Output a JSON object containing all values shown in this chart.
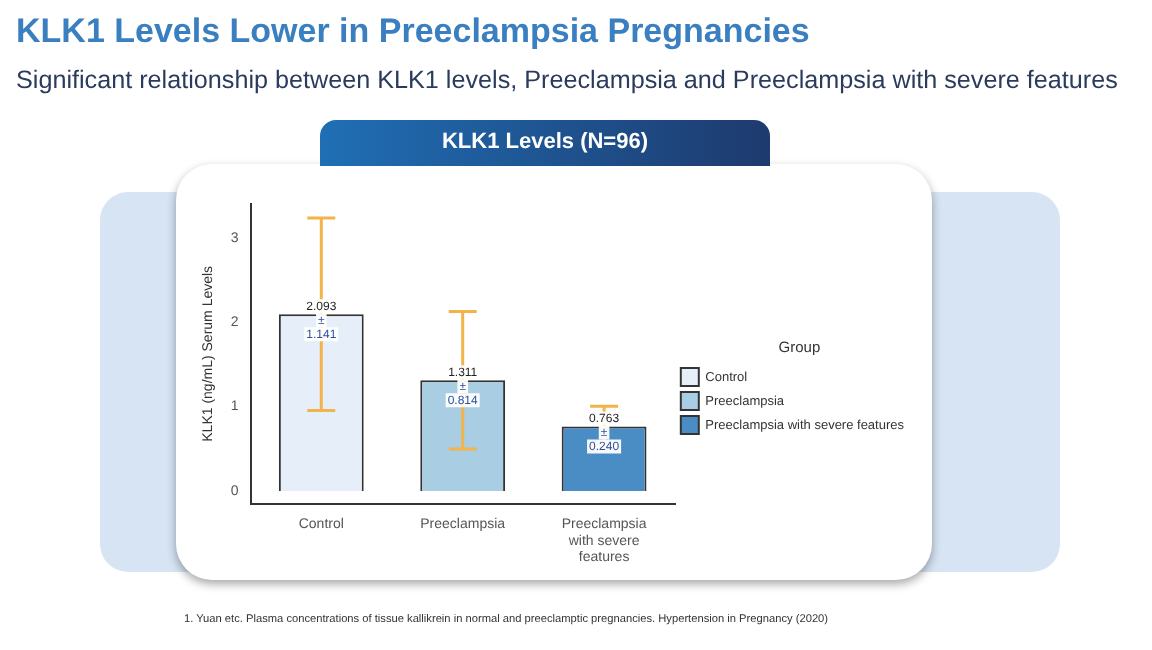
{
  "chart_data": {
    "type": "bar",
    "title": "KLK1 Levels Lower in Preeclampsia Pregnancies",
    "subtitle": "Significant relationship between KLK1 levels, Preeclampsia and Preeclampsia with severe features",
    "ylabel": "KLK1 (ng/mL) Serum Levels",
    "legend_title": "Group",
    "legend": "right",
    "categories": [
      "Control",
      "Preeclampsia",
      "Preeclampsia with severe features"
    ],
    "series": [
      {
        "name": "Control",
        "color": "#e6eef9",
        "values": [
          2.093,
          null,
          null
        ],
        "errors": [
          1.141,
          null,
          null
        ],
        "value_labels": [
          "2.093\n±\n1.141",
          null,
          null
        ]
      },
      {
        "name": "Preeclampsia",
        "color": "#a9cde3",
        "values": [
          null,
          1.311,
          null
        ],
        "errors": [
          null,
          0.814,
          null
        ],
        "value_labels": [
          null,
          "1.311\n±\n0.814",
          null
        ]
      },
      {
        "name": "Preeclampsia with severe features",
        "color": "#4a8cc4",
        "values": [
          null,
          null,
          0.763
        ],
        "errors": [
          null,
          null,
          0.24
        ],
        "value_labels": [
          null,
          null,
          "0.763\n±\n0.240"
        ]
      }
    ],
    "ylim": [
      -0.15,
      3.4
    ],
    "yticks": [
      0,
      1,
      2,
      3
    ],
    "grid": false,
    "annotations": [
      "KLK1 Levels (N=96)",
      "1. Yuan etc. Plasma concentrations of tissue kallikrein in normal and preeclamptic pregnancies. Hypertension in Pregnancy (2020)"
    ]
  }
}
